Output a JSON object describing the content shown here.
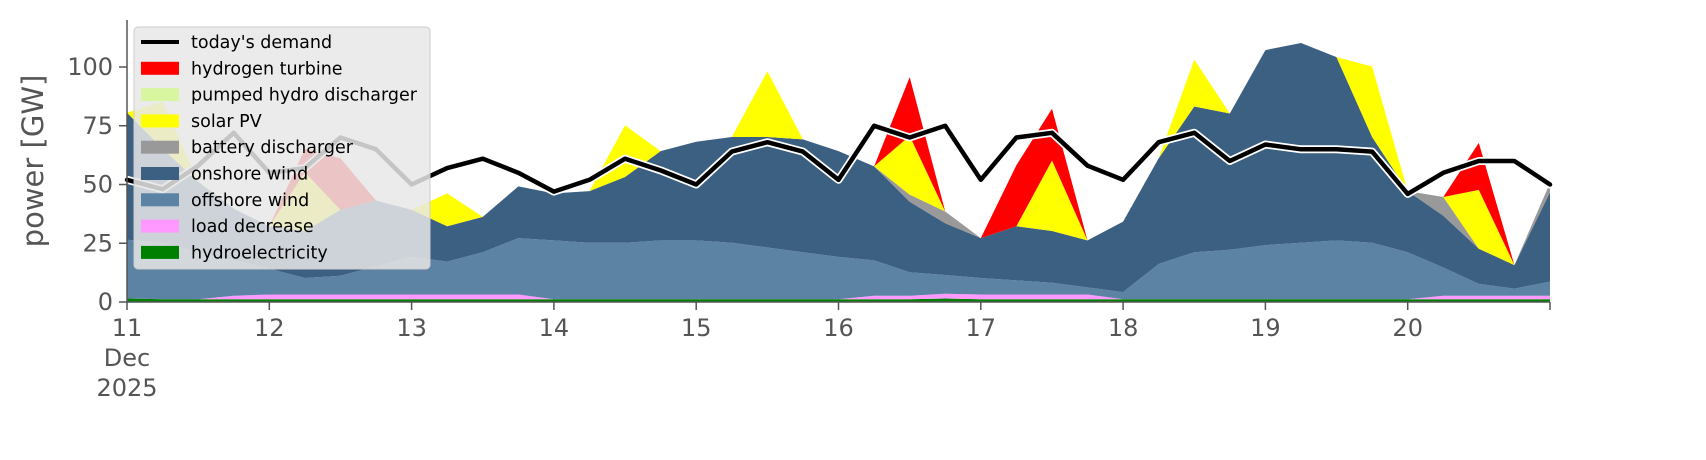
{
  "chart_data": {
    "type": "area",
    "ylabel": "power [GW]",
    "ylim": [
      0,
      120
    ],
    "xlim": [
      0,
      10
    ],
    "x_ticks": [
      {
        "x": 0,
        "lines": [
          "11",
          "Dec",
          "2025"
        ]
      },
      {
        "x": 1,
        "lines": [
          "12"
        ]
      },
      {
        "x": 2,
        "lines": [
          "13"
        ]
      },
      {
        "x": 3,
        "lines": [
          "14"
        ]
      },
      {
        "x": 4,
        "lines": [
          "15"
        ]
      },
      {
        "x": 5,
        "lines": [
          "16"
        ]
      },
      {
        "x": 6,
        "lines": [
          "17"
        ]
      },
      {
        "x": 7,
        "lines": [
          "18"
        ]
      },
      {
        "x": 8,
        "lines": [
          "19"
        ]
      },
      {
        "x": 9,
        "lines": [
          "20"
        ]
      }
    ],
    "y_ticks": [
      0,
      25,
      50,
      75,
      100
    ],
    "grid": false,
    "legend_position": "top-left",
    "x": [
      0,
      0.25,
      0.5,
      0.75,
      1,
      1.25,
      1.5,
      1.75,
      2,
      2.25,
      2.5,
      2.75,
      3,
      3.25,
      3.5,
      3.75,
      4,
      4.25,
      4.5,
      4.75,
      5,
      5.25,
      5.5,
      5.75,
      6,
      6.25,
      6.5,
      6.75,
      7,
      7.25,
      7.5,
      7.75,
      8,
      8.25,
      8.5,
      8.75,
      9,
      9.25,
      9.5,
      9.75,
      10
    ],
    "series": [
      {
        "name": "hydroelectricity",
        "color": "#008000",
        "values": [
          1.5,
          1.2,
          1.2,
          1.2,
          1.2,
          1.2,
          1.2,
          1.2,
          1.2,
          1.2,
          1.2,
          1.2,
          1.2,
          1.2,
          1.2,
          1.2,
          1.2,
          1.2,
          1.2,
          1.2,
          1.2,
          1.2,
          1.2,
          1.5,
          1.2,
          1.2,
          1.2,
          1.2,
          1.2,
          1.2,
          1.2,
          1.2,
          1.2,
          1.2,
          1.2,
          1.2,
          1.2,
          1.2,
          1.2,
          1.2,
          1.2
        ]
      },
      {
        "name": "load decrease",
        "color": "#ff99ff",
        "values": [
          0,
          0,
          0,
          1.5,
          2.0,
          2.0,
          2.0,
          2.0,
          2.0,
          2.0,
          2.0,
          2.0,
          0,
          0,
          0,
          0,
          0,
          0,
          0,
          0,
          0,
          1.5,
          1.5,
          2.0,
          2.0,
          2.0,
          2.0,
          2.0,
          0,
          0,
          0,
          0,
          0,
          0,
          0,
          0,
          0,
          1.5,
          1.5,
          1.5,
          1.5
        ]
      },
      {
        "name": "offshore wind",
        "color": "#5c82a4",
        "values": [
          25,
          24,
          20,
          15,
          11,
          7,
          8,
          12,
          16,
          14,
          18,
          24,
          25,
          24,
          24,
          25,
          25,
          24,
          22,
          20,
          18,
          15,
          10,
          8,
          7,
          6,
          5,
          3,
          3,
          15,
          20,
          21,
          23,
          24,
          25,
          24,
          20,
          12,
          5,
          3,
          6
        ]
      },
      {
        "name": "onshore wind",
        "color": "#3b6082",
        "values": [
          54,
          40,
          30,
          22,
          18,
          20,
          28,
          28,
          20,
          15,
          15,
          22,
          20,
          22,
          28,
          38,
          42,
          45,
          47,
          48,
          45,
          40,
          30,
          22,
          17,
          23,
          22,
          20,
          30,
          45,
          62,
          58,
          83,
          85,
          78,
          45,
          26,
          22,
          15,
          10,
          38
        ]
      },
      {
        "name": "battery discharger",
        "color": "#999999",
        "values": [
          0,
          0,
          0,
          0,
          0,
          0,
          0,
          0,
          0,
          0,
          0,
          0,
          0,
          0,
          0,
          0,
          0,
          0,
          0,
          0,
          0,
          0,
          3,
          5,
          0,
          0,
          0,
          0,
          0,
          0,
          0,
          0,
          0,
          0,
          0,
          0,
          0,
          8,
          0,
          0,
          4
        ]
      },
      {
        "name": "solar PV",
        "color": "#ffff00",
        "values": [
          0,
          20,
          0,
          0,
          0,
          25,
          0,
          0,
          0,
          14,
          0,
          0,
          0,
          0,
          22,
          0,
          0,
          0,
          28,
          0,
          0,
          0,
          25,
          0,
          0,
          0,
          30,
          0,
          0,
          0,
          20,
          0,
          0,
          0,
          0,
          30,
          0,
          0,
          25,
          0,
          0
        ]
      },
      {
        "name": "pumped hydro discharger",
        "color": "#d8f5a0",
        "values": [
          0,
          0,
          0,
          0,
          0,
          0,
          0,
          0,
          0,
          0,
          0,
          0,
          0,
          0,
          0,
          0,
          0,
          0,
          0,
          0,
          0,
          0,
          0,
          0,
          0,
          0,
          0,
          0,
          0,
          0,
          0,
          0,
          0,
          0,
          0,
          0,
          0,
          0,
          0,
          0,
          0
        ]
      },
      {
        "name": "hydrogen turbine",
        "color": "#ff0000",
        "values": [
          0,
          0,
          0,
          0,
          0,
          10,
          22,
          0,
          0,
          0,
          0,
          0,
          0,
          0,
          0,
          0,
          0,
          0,
          0,
          0,
          0,
          0,
          25,
          0,
          0,
          26,
          22,
          0,
          0,
          0,
          0,
          0,
          0,
          0,
          0,
          0,
          0,
          0,
          20,
          0,
          0
        ]
      }
    ],
    "demand": {
      "name": "today's demand",
      "color": "#000000",
      "values": [
        52,
        48,
        58,
        72,
        55,
        57,
        70,
        65,
        50,
        57,
        61,
        55,
        47,
        52,
        61,
        56,
        50,
        64,
        68,
        64,
        52,
        75,
        70,
        75,
        52,
        70,
        72,
        58,
        52,
        68,
        72,
        60,
        67,
        65,
        65,
        64,
        46,
        55,
        60,
        60,
        50
      ]
    }
  }
}
